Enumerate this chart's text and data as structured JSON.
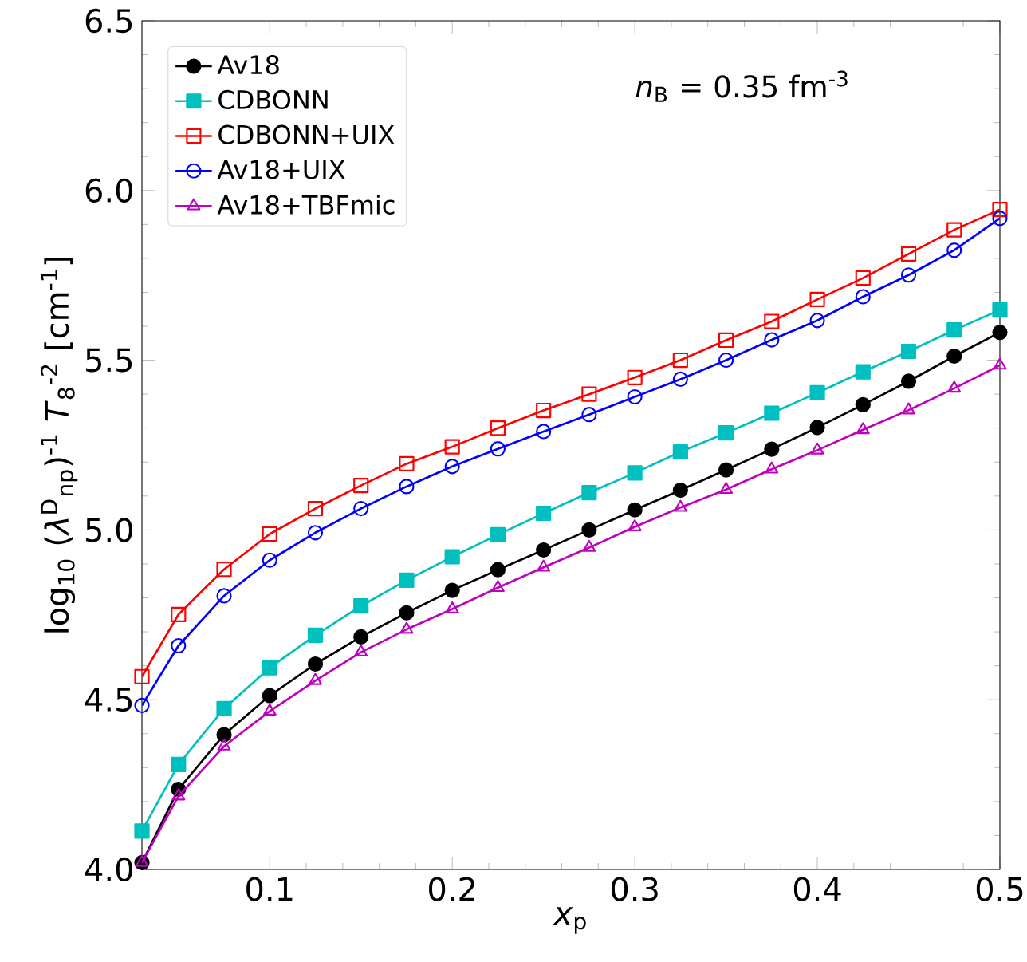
{
  "chart_data": {
    "type": "line",
    "xlabel": "*x*$_{p}$",
    "ylabel": "log$_{10}$ (*λ*$^{D}$$_{np}$)$^{-1}$ *T*$_{8}$$^{-2}$ [cm$^{-1}$]",
    "annotations": [
      "*n*$_{B}$ = 0.35 fm$^{-3}$"
    ],
    "x": [
      0.03,
      0.05,
      0.075,
      0.1,
      0.125,
      0.15,
      0.175,
      0.2,
      0.225,
      0.25,
      0.275,
      0.3,
      0.325,
      0.35,
      0.375,
      0.4,
      0.425,
      0.45,
      0.475,
      0.5
    ],
    "series": [
      {
        "name": "Av18",
        "color": "#000000",
        "marker": "circle",
        "values": [
          4.02,
          4.236,
          4.397,
          4.512,
          4.605,
          4.685,
          4.756,
          4.822,
          4.883,
          4.941,
          5.0,
          5.059,
          5.117,
          5.177,
          5.238,
          5.302,
          5.369,
          5.438,
          5.512,
          5.582
        ]
      },
      {
        "name": "CDBONN",
        "color": "#00bfbf",
        "marker": "square",
        "values": [
          4.113,
          4.309,
          4.474,
          4.594,
          4.69,
          4.776,
          4.852,
          4.921,
          4.986,
          5.049,
          5.11,
          5.168,
          5.23,
          5.286,
          5.344,
          5.404,
          5.466,
          5.526,
          5.589,
          5.648
        ]
      },
      {
        "name": "CDBONN+UIX",
        "color": "#ff0000",
        "marker": "square",
        "values": [
          4.568,
          4.751,
          4.884,
          4.988,
          5.063,
          5.131,
          5.195,
          5.245,
          5.3,
          5.352,
          5.4,
          5.449,
          5.5,
          5.559,
          5.614,
          5.679,
          5.742,
          5.813,
          5.884,
          5.944
        ]
      },
      {
        "name": "Av18+UIX",
        "color": "#0000ff",
        "marker": "circle",
        "values": [
          4.483,
          4.659,
          4.806,
          4.911,
          4.992,
          5.063,
          5.128,
          5.187,
          5.239,
          5.29,
          5.34,
          5.392,
          5.444,
          5.5,
          5.56,
          5.617,
          5.687,
          5.751,
          5.824,
          5.918
        ]
      },
      {
        "name": "Av18+TBFmic",
        "color": "#bf00bf",
        "marker": "triangle",
        "values": [
          4.02,
          4.216,
          4.363,
          4.466,
          4.556,
          4.64,
          4.707,
          4.767,
          4.83,
          4.89,
          4.948,
          5.009,
          5.066,
          5.119,
          5.179,
          5.235,
          5.295,
          5.353,
          5.417,
          5.485
        ]
      }
    ],
    "xlim": [
      0.03,
      0.5
    ],
    "ylim": [
      4.0,
      6.5
    ],
    "xticks": [
      0.1,
      0.2,
      0.3,
      0.4,
      0.5
    ],
    "yticks": [
      {
        "value": 4.0,
        "label": "4.0"
      },
      {
        "value": 4.5,
        "label": "4.5"
      },
      {
        "value": 5.0,
        "label": "5.0"
      },
      {
        "value": 5.5,
        "label": "5.5"
      },
      {
        "value": 6.0,
        "label": "6.0"
      },
      {
        "value": 6.5,
        "label": "6.5"
      }
    ],
    "legend": "top left",
    "line_style": "solid"
  }
}
